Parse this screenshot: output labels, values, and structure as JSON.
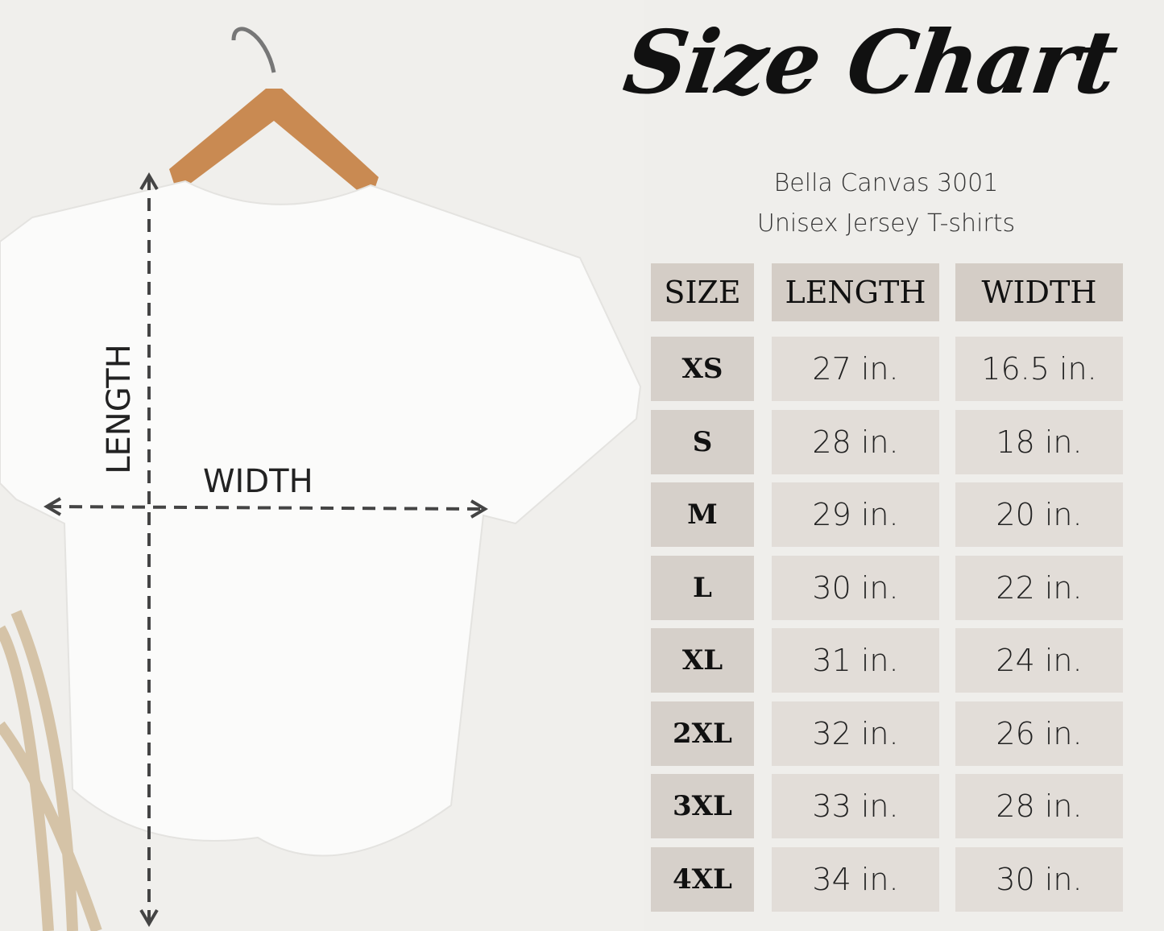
{
  "title": "Size Chart",
  "subtitle_line1": "Bella Canvas 3001",
  "subtitle_line2": "Unisex Jersey T-shirts",
  "diagram": {
    "length_label": "LENGTH",
    "width_label": "WIDTH"
  },
  "table": {
    "headers": [
      "SIZE",
      "LENGTH",
      "WIDTH"
    ],
    "rows": [
      {
        "size": "XS",
        "length": "27 in.",
        "width": "16.5 in."
      },
      {
        "size": "S",
        "length": "28 in.",
        "width": "18 in."
      },
      {
        "size": "M",
        "length": "29 in.",
        "width": "20 in."
      },
      {
        "size": "L",
        "length": "30 in.",
        "width": "22 in."
      },
      {
        "size": "XL",
        "length": "31 in.",
        "width": "24 in."
      },
      {
        "size": "2XL",
        "length": "32 in.",
        "width": "26 in."
      },
      {
        "size": "3XL",
        "length": "33 in.",
        "width": "28 in."
      },
      {
        "size": "4XL",
        "length": "34 in.",
        "width": "30 in."
      }
    ]
  },
  "colors": {
    "background": "#efeeeb",
    "header_cell": "#d4cdc6",
    "size_cell": "#d6d0ca",
    "value_cell": "#e2ddd8"
  }
}
